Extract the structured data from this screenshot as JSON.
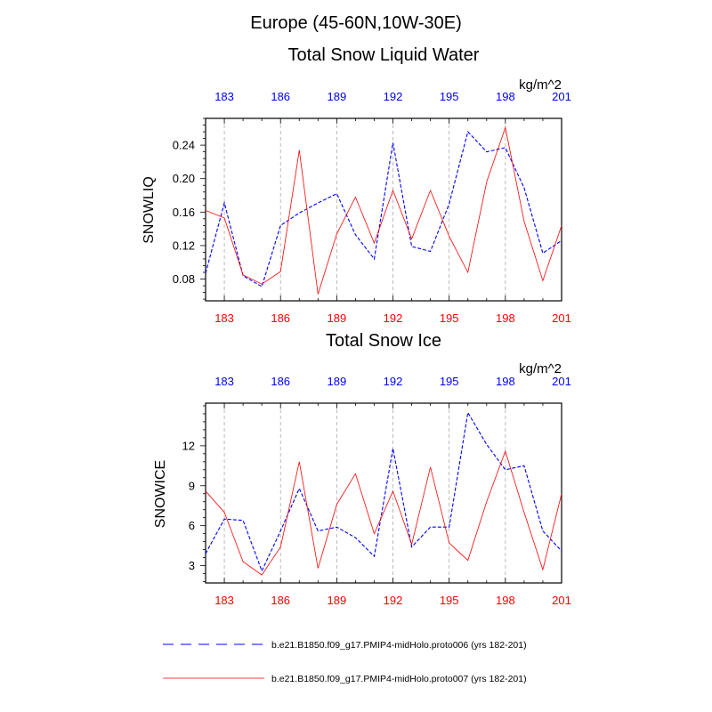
{
  "page": {
    "title": "Europe (45-60N,10W-30E)"
  },
  "colors": {
    "series_top_axis": "#0000ff",
    "series_bottom_axis": "#ff0000",
    "axis": "#000000",
    "grid": "#aaaaaa"
  },
  "legend": {
    "placement": "bottom",
    "entries": [
      {
        "label": "b.e21.B1850.f09_g17.PMIP4-midHolo.proto006 (yrs 182-201)",
        "color": "#0000ff",
        "style": "dashed"
      },
      {
        "label": "b.e21.B1850.f09_g17.PMIP4-midHolo.proto007 (yrs 182-201)",
        "color": "#ff0000",
        "style": "solid"
      }
    ]
  },
  "chart_data": [
    {
      "type": "line",
      "title": "Total Snow Liquid Water",
      "units": "kg/m^2",
      "ylabel": "SNOWLIQ",
      "xlabel": "",
      "xlim": [
        182,
        201
      ],
      "ylim": [
        0.054,
        0.272
      ],
      "x_ticks": [
        183,
        186,
        189,
        192,
        195,
        198,
        201
      ],
      "y_ticks": [
        0.08,
        0.12,
        0.16,
        0.2,
        0.24
      ],
      "y_tick_labels": [
        "0.08",
        "0.12",
        "0.16",
        "0.20",
        "0.24"
      ],
      "grid": "vertical dashed at x ticks",
      "x": [
        182,
        183,
        184,
        185,
        186,
        187,
        188,
        189,
        190,
        191,
        192,
        193,
        194,
        195,
        196,
        197,
        198,
        199,
        200,
        201
      ],
      "series": [
        {
          "color": "#0000ff",
          "style": "dashed",
          "values": [
            0.087,
            0.171,
            0.084,
            0.071,
            0.144,
            0.159,
            0.171,
            0.182,
            0.133,
            0.104,
            0.243,
            0.119,
            0.113,
            0.17,
            0.256,
            0.232,
            0.237,
            0.189,
            0.111,
            0.126
          ]
        },
        {
          "color": "#ff0000",
          "style": "solid",
          "values": [
            0.162,
            0.153,
            0.085,
            0.074,
            0.089,
            0.234,
            0.062,
            0.134,
            0.178,
            0.123,
            0.186,
            0.128,
            0.186,
            0.131,
            0.088,
            0.196,
            0.261,
            0.149,
            0.078,
            0.144
          ]
        }
      ]
    },
    {
      "type": "line",
      "title": "Total Snow Ice",
      "units": "kg/m^2",
      "ylabel": "SNOWICE",
      "xlabel": "",
      "xlim": [
        182,
        201
      ],
      "ylim": [
        1.7,
        15.2
      ],
      "x_ticks": [
        183,
        186,
        189,
        192,
        195,
        198,
        201
      ],
      "y_ticks": [
        3,
        6,
        9,
        12
      ],
      "y_tick_labels": [
        "3",
        "6",
        "9",
        "12"
      ],
      "grid": "vertical dashed at x ticks",
      "x": [
        182,
        183,
        184,
        185,
        186,
        187,
        188,
        189,
        190,
        191,
        192,
        193,
        194,
        195,
        196,
        197,
        198,
        199,
        200,
        201
      ],
      "series": [
        {
          "color": "#0000ff",
          "style": "dashed",
          "values": [
            3.9,
            6.5,
            6.4,
            2.6,
            5.6,
            8.8,
            5.6,
            5.9,
            5.1,
            3.7,
            11.8,
            4.4,
            5.9,
            5.9,
            14.5,
            12.1,
            10.2,
            10.5,
            5.6,
            4.1
          ]
        },
        {
          "color": "#ff0000",
          "style": "solid",
          "values": [
            8.6,
            7.0,
            3.3,
            2.3,
            4.4,
            10.8,
            2.8,
            7.6,
            9.9,
            5.4,
            8.6,
            4.6,
            10.4,
            4.7,
            3.4,
            7.8,
            11.6,
            7.0,
            2.7,
            8.4
          ]
        }
      ]
    }
  ]
}
